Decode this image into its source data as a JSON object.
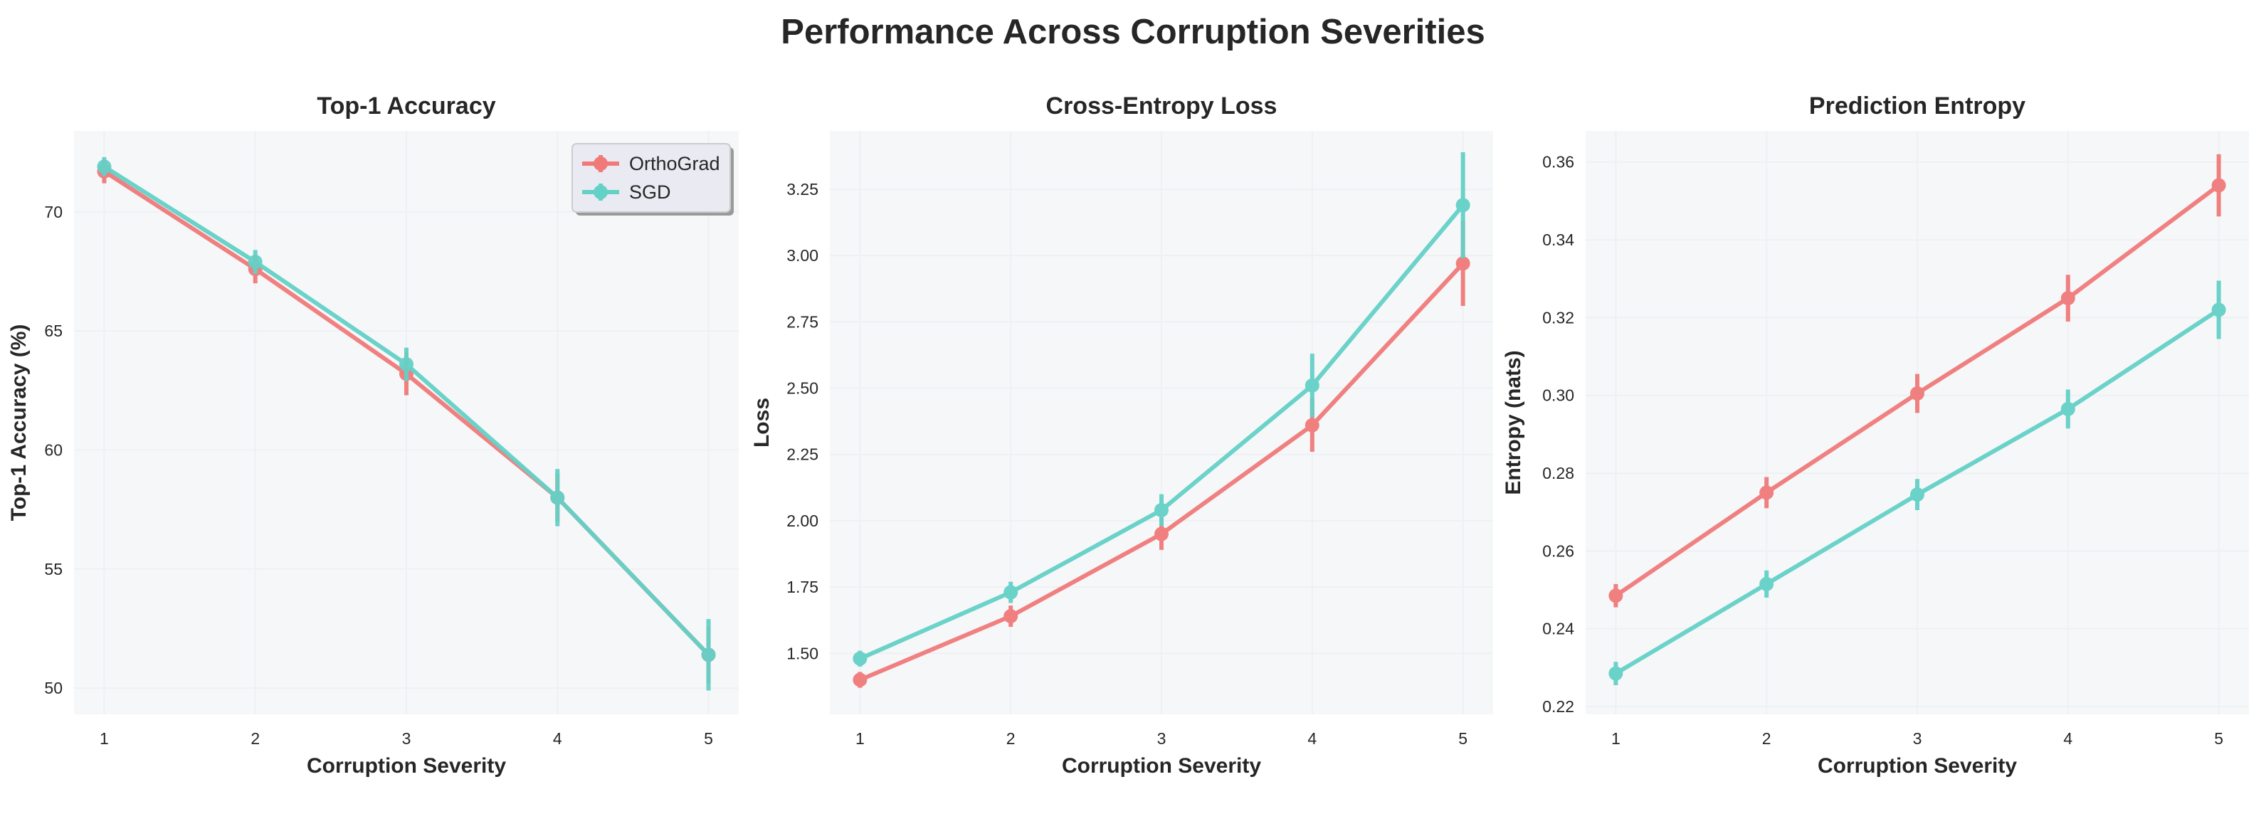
{
  "figure_title": "Performance Across Corruption Severities",
  "colors": {
    "OrthoGrad": "#f07a7a",
    "SGD": "#63d1c6",
    "plot_bg": "#f6f7f9"
  },
  "chart_data": [
    {
      "type": "line",
      "title": "Top-1 Accuracy",
      "xlabel": "Corruption Severity",
      "ylabel": "Top-1 Accuracy (%)",
      "x": [
        1,
        2,
        3,
        4,
        5
      ],
      "xlim": [
        0.8,
        5.2
      ],
      "ylim": [
        48.9,
        73.4
      ],
      "yticks": [
        50,
        55,
        60,
        65,
        70
      ],
      "legend": "top-right",
      "series": [
        {
          "name": "OrthoGrad",
          "values": [
            71.7,
            67.6,
            63.2,
            58.0,
            51.4
          ],
          "err": [
            0.5,
            0.6,
            0.9,
            1.0,
            1.2
          ]
        },
        {
          "name": "SGD",
          "values": [
            71.9,
            67.9,
            63.6,
            58.0,
            51.4
          ],
          "err": [
            0.4,
            0.5,
            0.7,
            1.2,
            1.5
          ]
        }
      ]
    },
    {
      "type": "line",
      "title": "Cross-Entropy Loss",
      "xlabel": "Corruption Severity",
      "ylabel": "Loss",
      "x": [
        1,
        2,
        3,
        4,
        5
      ],
      "xlim": [
        0.8,
        5.2
      ],
      "ylim": [
        1.27,
        3.47
      ],
      "yticks": [
        1.5,
        1.75,
        2.0,
        2.25,
        2.5,
        2.75,
        3.0,
        3.25
      ],
      "series": [
        {
          "name": "OrthoGrad",
          "values": [
            1.4,
            1.64,
            1.95,
            2.36,
            2.97
          ],
          "err": [
            0.03,
            0.04,
            0.06,
            0.1,
            0.16
          ]
        },
        {
          "name": "SGD",
          "values": [
            1.48,
            1.73,
            2.04,
            2.51,
            3.19
          ],
          "err": [
            0.03,
            0.04,
            0.06,
            0.12,
            0.2
          ]
        }
      ]
    },
    {
      "type": "line",
      "title": "Prediction Entropy",
      "xlabel": "Corruption Severity",
      "ylabel": "Entropy (nats)",
      "x": [
        1,
        2,
        3,
        4,
        5
      ],
      "xlim": [
        0.8,
        5.2
      ],
      "ylim": [
        0.218,
        0.368
      ],
      "yticks": [
        0.22,
        0.24,
        0.26,
        0.28,
        0.3,
        0.32,
        0.34,
        0.36
      ],
      "series": [
        {
          "name": "OrthoGrad",
          "values": [
            0.2485,
            0.275,
            0.3005,
            0.325,
            0.354
          ],
          "err": [
            0.003,
            0.004,
            0.005,
            0.006,
            0.008
          ]
        },
        {
          "name": "SGD",
          "values": [
            0.2285,
            0.2515,
            0.2745,
            0.2965,
            0.322
          ],
          "err": [
            0.003,
            0.0035,
            0.004,
            0.005,
            0.0075
          ]
        }
      ]
    }
  ]
}
